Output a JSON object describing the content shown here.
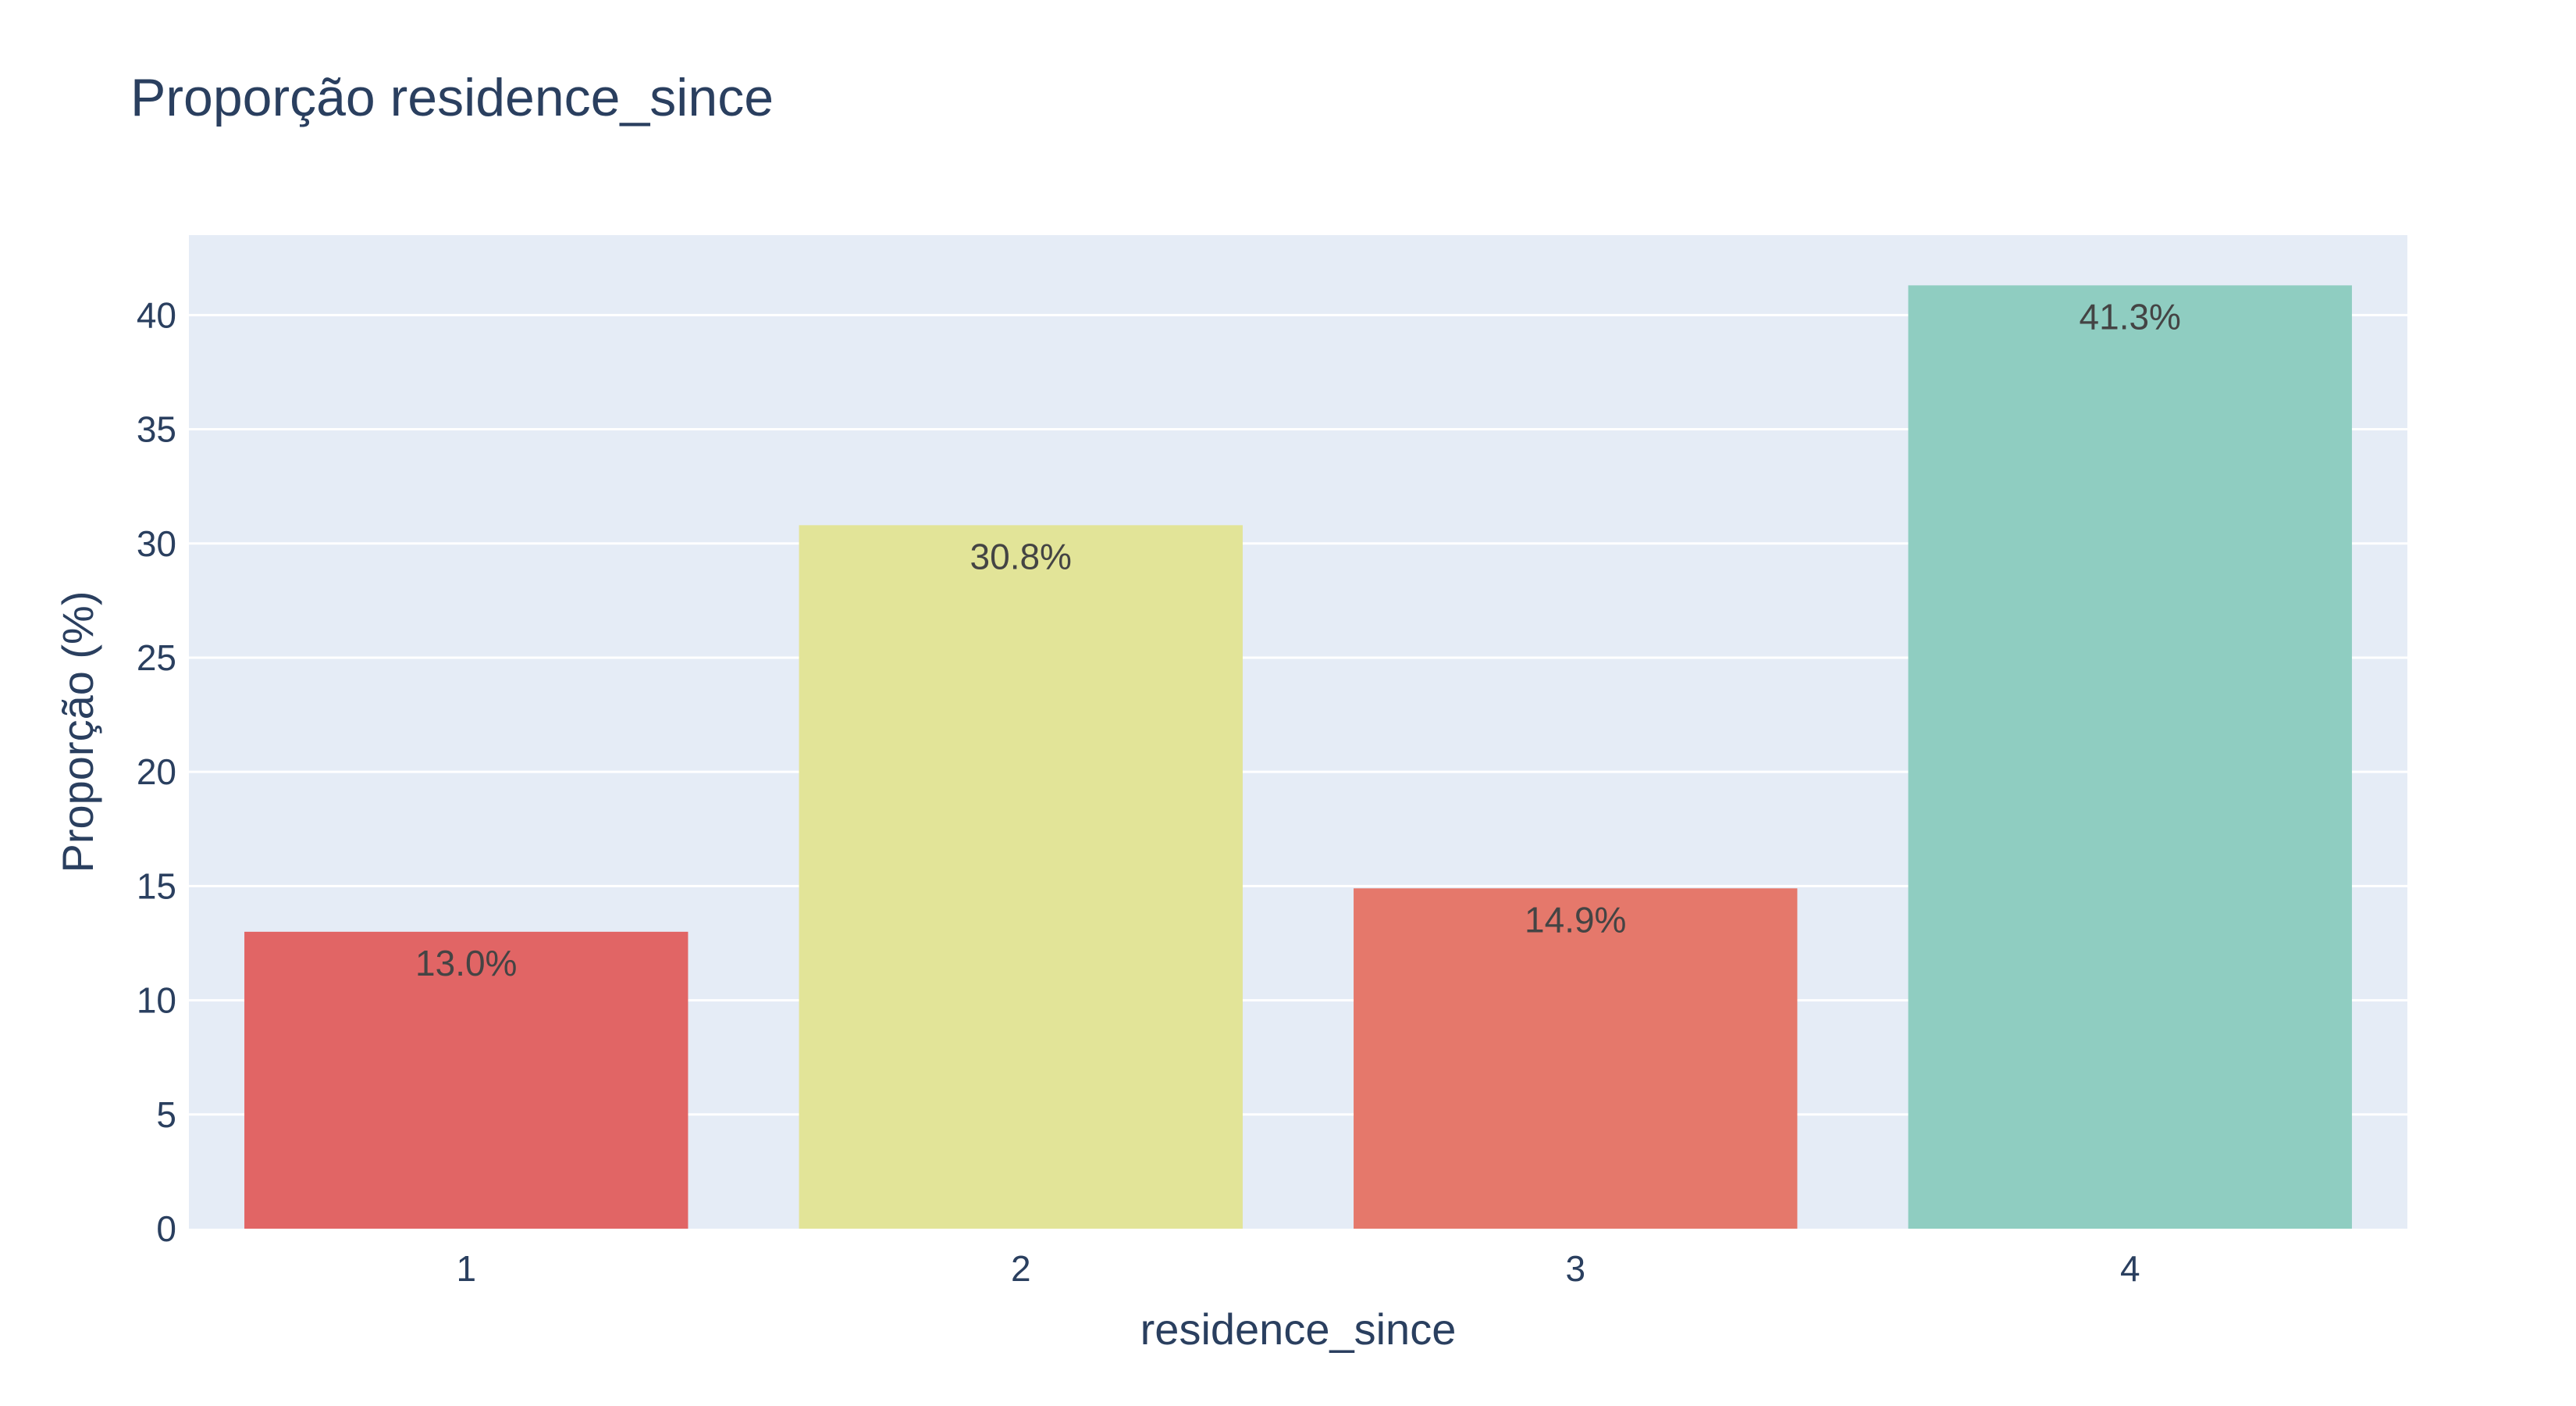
{
  "chart_data": {
    "type": "bar",
    "title": "Proporção residence_since",
    "xlabel": "residence_since",
    "ylabel": "Proporção (%)",
    "categories": [
      "1",
      "2",
      "3",
      "4"
    ],
    "values": [
      13.0,
      30.8,
      14.9,
      41.3
    ],
    "data_labels": [
      "13.0%",
      "30.8%",
      "14.9%",
      "41.3%"
    ],
    "bar_colors": [
      "#e16565",
      "#e2e498",
      "#e5786b",
      "#8fcdc1"
    ],
    "ylim": [
      0,
      43.5
    ],
    "y_ticks": [
      0,
      5,
      10,
      15,
      20,
      25,
      30,
      35,
      40
    ],
    "grid": true,
    "legend": "none",
    "plot_background": "#e5ecf6",
    "gridline_color": "#ffffff",
    "text_color": "#2a3f5f"
  }
}
